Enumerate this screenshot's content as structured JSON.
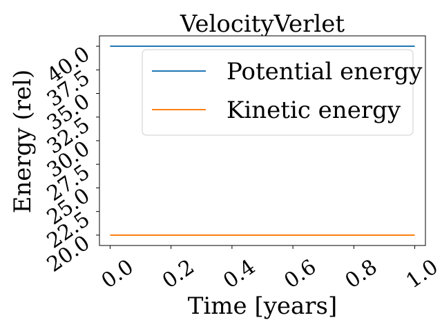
{
  "chart_data": {
    "type": "line",
    "title": "VelocityVerlet",
    "xlabel": "Time [years]",
    "ylabel": "Energy (rel)",
    "xlim": [
      -0.035,
      1.035
    ],
    "ylim": [
      18.9,
      41.1
    ],
    "xticks": [
      0.0,
      0.2,
      0.4,
      0.6,
      0.8,
      1.0
    ],
    "xtick_labels": [
      "0.0",
      "0.2",
      "0.4",
      "0.6",
      "0.8",
      "1.0"
    ],
    "yticks": [
      20.0,
      22.5,
      25.0,
      27.5,
      30.0,
      32.5,
      35.0,
      37.5,
      40.0
    ],
    "ytick_labels": [
      "20.0",
      "22.5",
      "25.0",
      "27.5",
      "30.0",
      "32.5",
      "35.0",
      "37.5",
      "40.0"
    ],
    "grid": false,
    "legend_position": "upper-right",
    "series": [
      {
        "name": "Potential energy",
        "color": "#1f77b4",
        "x": [
          0.0,
          1.0
        ],
        "y": [
          40.0,
          40.0
        ]
      },
      {
        "name": "Kinetic energy",
        "color": "#ff7f0e",
        "x": [
          0.0,
          1.0
        ],
        "y": [
          20.0,
          20.0
        ]
      }
    ]
  }
}
